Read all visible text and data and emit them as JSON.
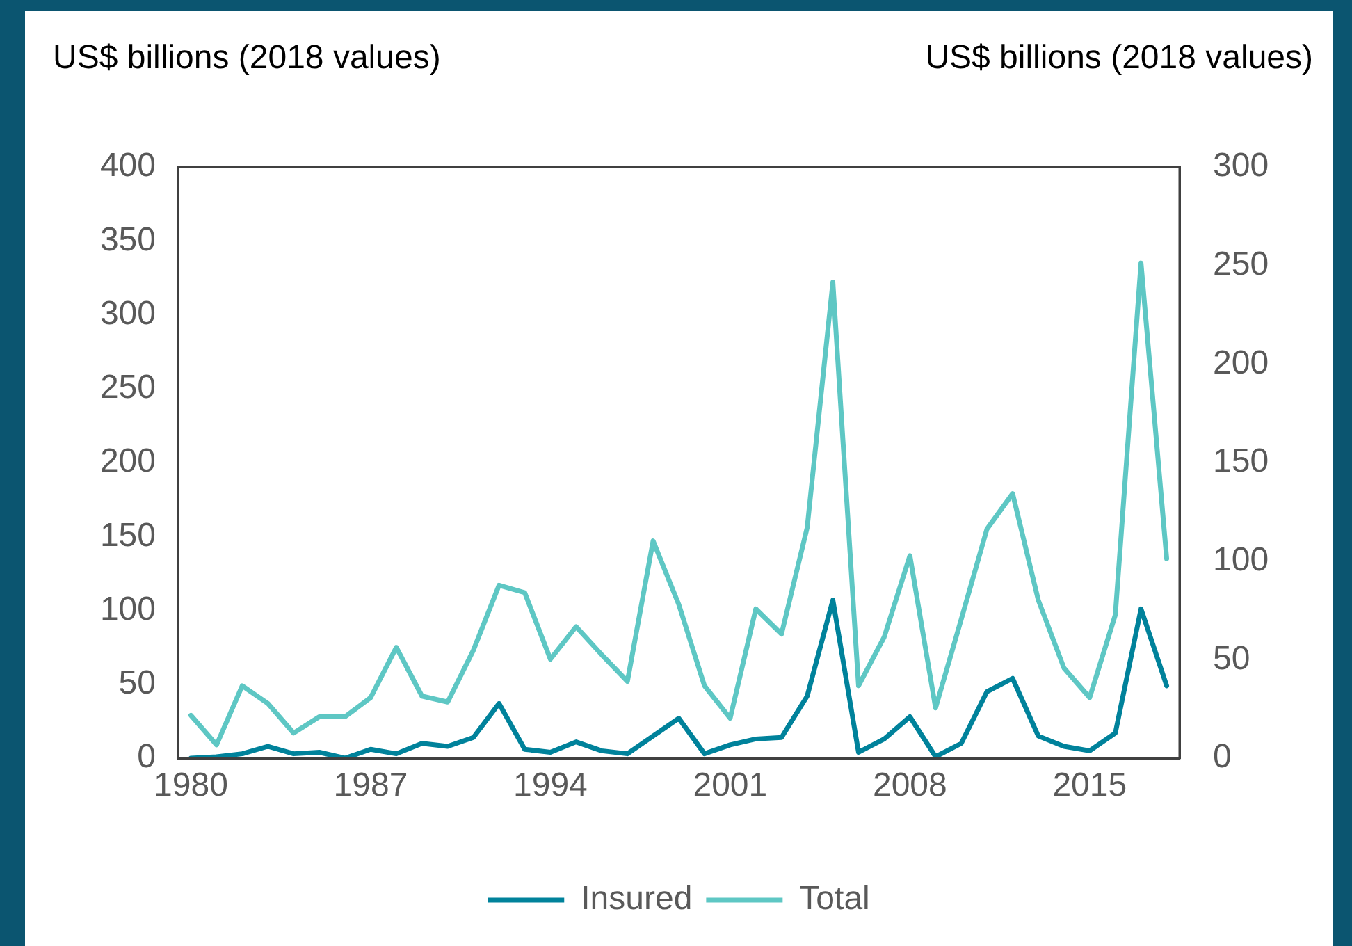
{
  "chart_data": {
    "type": "line",
    "ylabel": "US$ billions (2018 values)",
    "y2label": "US$ billions (2018 values)",
    "x": [
      1980,
      1981,
      1982,
      1983,
      1984,
      1985,
      1986,
      1987,
      1988,
      1989,
      1990,
      1991,
      1992,
      1993,
      1994,
      1995,
      1996,
      1997,
      1998,
      1999,
      2000,
      2001,
      2002,
      2003,
      2004,
      2005,
      2006,
      2007,
      2008,
      2009,
      2010,
      2011,
      2012,
      2013,
      2014,
      2015,
      2016,
      2017,
      2018
    ],
    "xlim": [
      1979.5,
      2018.5
    ],
    "xticks": [
      1980,
      1987,
      1994,
      2001,
      2008,
      2015
    ],
    "ylim": [
      0,
      400
    ],
    "yticks": [
      0,
      50,
      100,
      150,
      200,
      250,
      300,
      350,
      400
    ],
    "y2lim": [
      0,
      300
    ],
    "y2ticks": [
      0,
      50,
      100,
      150,
      200,
      250,
      300
    ],
    "series": [
      {
        "name": "Insured",
        "color": "#00829b",
        "axis": "y",
        "values": [
          0,
          1,
          3,
          8,
          3,
          4,
          0,
          6,
          3,
          10,
          8,
          14,
          37,
          6,
          4,
          11,
          5,
          3,
          15,
          27,
          3,
          9,
          13,
          14,
          42,
          107,
          4,
          13,
          28,
          1,
          10,
          45,
          54,
          15,
          8,
          5,
          17,
          101,
          49
        ]
      },
      {
        "name": "Total",
        "color": "#5ec7c4",
        "axis": "y",
        "values": [
          29,
          9,
          49,
          37,
          17,
          28,
          28,
          41,
          75,
          42,
          38,
          73,
          117,
          112,
          67,
          89,
          70,
          52,
          147,
          104,
          49,
          27,
          101,
          84,
          156,
          322,
          49,
          82,
          137,
          34,
          94,
          155,
          179,
          107,
          61,
          41,
          97,
          335,
          135
        ]
      }
    ],
    "grid": false,
    "legend": "bottom",
    "marker": "none",
    "line_style": "solid"
  }
}
